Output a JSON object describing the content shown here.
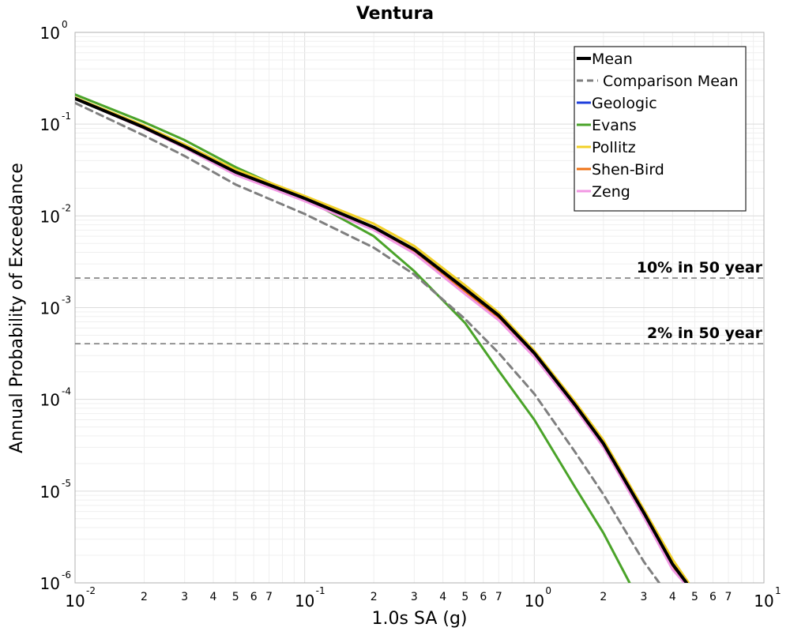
{
  "chart_data": {
    "type": "line",
    "title": "Ventura",
    "xlabel": "1.0s SA (g)",
    "ylabel": "Annual Probability of Exceedance",
    "x_scale": "log",
    "y_scale": "log",
    "xlim": [
      0.01,
      10
    ],
    "ylim": [
      1e-06,
      1
    ],
    "grid": true,
    "legend_position": "top-right",
    "x_major_ticks": [
      {
        "base": "10",
        "exp": "-2",
        "value": 0.01
      },
      {
        "base": "10",
        "exp": "-1",
        "value": 0.1
      },
      {
        "base": "10",
        "exp": "0",
        "value": 1
      },
      {
        "base": "10",
        "exp": "1",
        "value": 10
      }
    ],
    "y_major_ticks": [
      {
        "base": "10",
        "exp": "0",
        "value": 1
      },
      {
        "base": "10",
        "exp": "-1",
        "value": 0.1
      },
      {
        "base": "10",
        "exp": "-2",
        "value": 0.01
      },
      {
        "base": "10",
        "exp": "-3",
        "value": 0.001
      },
      {
        "base": "10",
        "exp": "-4",
        "value": 0.0001
      },
      {
        "base": "10",
        "exp": "-5",
        "value": 1e-05
      },
      {
        "base": "10",
        "exp": "-6",
        "value": 1e-06
      }
    ],
    "x_minor_tick_labels": [
      "2",
      "3",
      "4",
      "5",
      "6",
      "7"
    ],
    "reference_lines": [
      {
        "label": "10% in 50 year",
        "y": 0.0021
      },
      {
        "label": "2% in 50 year",
        "y": 0.000404
      }
    ],
    "series": [
      {
        "name": "Geologic",
        "color": "#1f3fdc",
        "style": "solid",
        "x": [
          0.01,
          0.02,
          0.03,
          0.05,
          0.1,
          0.2,
          0.3,
          0.5,
          0.7,
          1.0,
          1.5,
          2.0,
          3.0,
          4.0,
          4.6
        ],
        "y": [
          0.19,
          0.092,
          0.057,
          0.03,
          0.0155,
          0.0075,
          0.0043,
          0.0016,
          0.00082,
          0.00032,
          8.8e-05,
          3.3e-05,
          5.8e-06,
          1.6e-06,
          1e-06
        ]
      },
      {
        "name": "Evans",
        "color": "#4aa329",
        "style": "solid",
        "x": [
          0.01,
          0.02,
          0.03,
          0.05,
          0.1,
          0.2,
          0.3,
          0.5,
          0.7,
          1.0,
          1.5,
          2.0,
          2.6
        ],
        "y": [
          0.21,
          0.105,
          0.067,
          0.034,
          0.0155,
          0.006,
          0.0025,
          0.00068,
          0.000205,
          6e-05,
          1.12e-05,
          3.5e-06,
          1e-06
        ]
      },
      {
        "name": "Pollitz",
        "color": "#f2d027",
        "style": "solid",
        "x": [
          0.01,
          0.02,
          0.03,
          0.05,
          0.1,
          0.2,
          0.3,
          0.5,
          0.7,
          1.0,
          1.5,
          2.0,
          3.0,
          4.0,
          4.7
        ],
        "y": [
          0.195,
          0.096,
          0.06,
          0.032,
          0.0165,
          0.0082,
          0.0047,
          0.00175,
          0.00088,
          0.00034,
          9.5e-05,
          3.6e-05,
          6.3e-06,
          1.8e-06,
          1e-06
        ]
      },
      {
        "name": "Shen-Bird",
        "color": "#ef7316",
        "style": "solid",
        "x": [
          0.01,
          0.02,
          0.03,
          0.05,
          0.1,
          0.2,
          0.3,
          0.5,
          0.7,
          1.0,
          1.5,
          2.0,
          3.0,
          4.0,
          4.55
        ],
        "y": [
          0.19,
          0.091,
          0.056,
          0.029,
          0.015,
          0.0072,
          0.0041,
          0.0015,
          0.00078,
          0.0003,
          8.3e-05,
          3.1e-05,
          5.5e-06,
          1.5e-06,
          1e-06
        ]
      },
      {
        "name": "Zeng",
        "color": "#f297e3",
        "style": "solid",
        "x": [
          0.01,
          0.02,
          0.03,
          0.05,
          0.1,
          0.2,
          0.3,
          0.5,
          0.7,
          1.0,
          1.5,
          2.0,
          3.0,
          4.0,
          4.5
        ],
        "y": [
          0.19,
          0.09,
          0.055,
          0.028,
          0.0145,
          0.007,
          0.0039,
          0.0014,
          0.00073,
          0.00029,
          8.1e-05,
          3e-05,
          5.2e-06,
          1.4e-06,
          1e-06
        ]
      },
      {
        "name": "Comparison Mean",
        "color": "#7f7f7f",
        "style": "dashed",
        "x": [
          0.01,
          0.02,
          0.03,
          0.05,
          0.1,
          0.2,
          0.3,
          0.5,
          0.7,
          1.0,
          1.5,
          2.0,
          3.0,
          3.5
        ],
        "y": [
          0.17,
          0.075,
          0.045,
          0.022,
          0.0105,
          0.0045,
          0.0023,
          0.00075,
          0.00032,
          0.000115,
          2.7e-05,
          9.2e-06,
          1.7e-06,
          1e-06
        ]
      },
      {
        "name": "Mean",
        "color": "#000000",
        "style": "solid-bold",
        "x": [
          0.01,
          0.02,
          0.03,
          0.05,
          0.1,
          0.2,
          0.3,
          0.5,
          0.7,
          1.0,
          1.5,
          2.0,
          3.0,
          4.0,
          4.6
        ],
        "y": [
          0.19,
          0.092,
          0.057,
          0.03,
          0.0155,
          0.0075,
          0.0043,
          0.0016,
          0.00082,
          0.00032,
          8.8e-05,
          3.3e-05,
          5.8e-06,
          1.6e-06,
          1e-06
        ]
      }
    ],
    "legend_order": [
      "Mean",
      "Comparison Mean",
      "Geologic",
      "Evans",
      "Pollitz",
      "Shen-Bird",
      "Zeng"
    ]
  }
}
